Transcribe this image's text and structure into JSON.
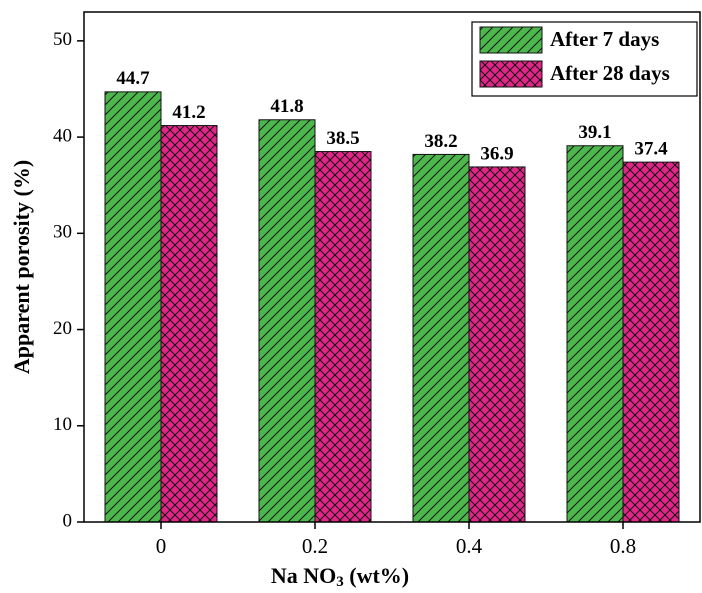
{
  "chart_data": {
    "type": "grouped_bar",
    "categories": [
      "0",
      "0.2",
      "0.4",
      "0.8"
    ],
    "series": [
      {
        "name": "After 7 days",
        "color": "#4cb84c",
        "hatch": "diagonal",
        "values": [
          44.7,
          41.8,
          38.2,
          39.1
        ]
      },
      {
        "name": "After 28 days",
        "color": "#e3258a",
        "hatch": "cross",
        "values": [
          41.2,
          38.5,
          36.9,
          37.4
        ]
      }
    ],
    "x_label": [
      "Na NO",
      "3",
      " (wt%)"
    ],
    "y_label": "Apparent porosity (%)",
    "ylim": [
      0,
      53
    ],
    "yticks": [
      0,
      10,
      20,
      30,
      40,
      50
    ],
    "legend": "upper-right"
  }
}
